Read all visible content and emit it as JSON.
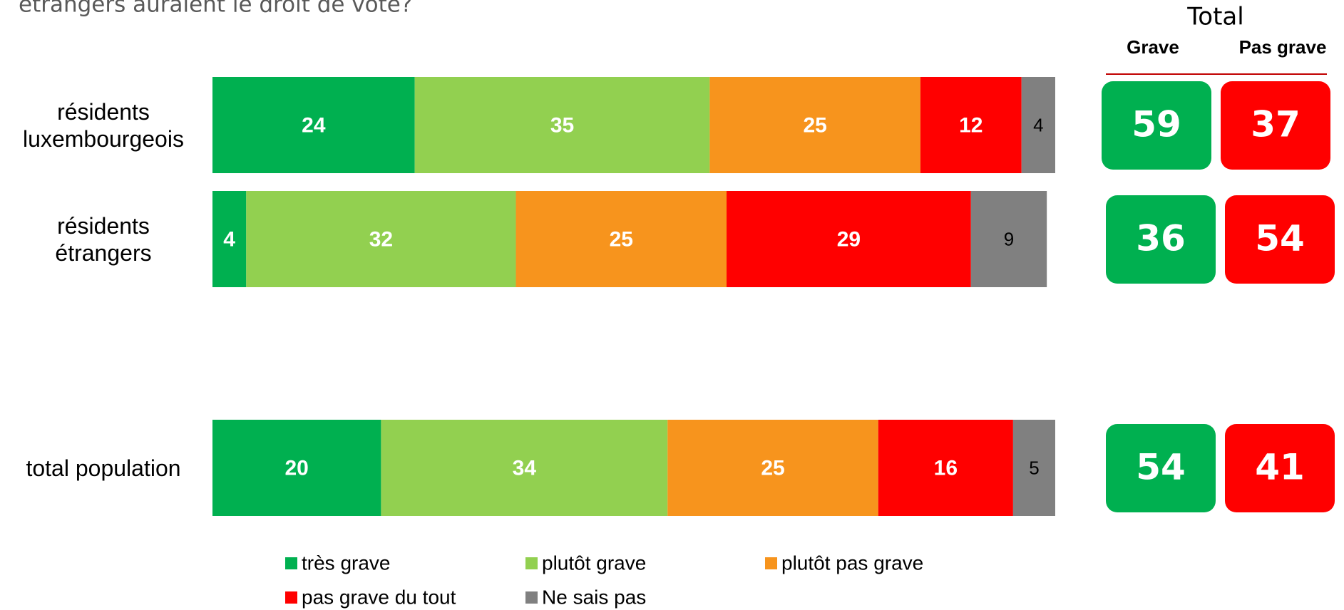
{
  "chart_data": {
    "type": "stacked-bar-horizontal",
    "title": "étrangers auraient le droit de vote?",
    "categories": [
      "résidents luxembourgeois",
      "résidents étrangers",
      "total population"
    ],
    "xlim": [
      0,
      100
    ],
    "series": [
      {
        "name": "très grave",
        "color": "#00b050",
        "values": [
          24,
          4,
          20
        ]
      },
      {
        "name": "plutôt grave",
        "color": "#92d050",
        "values": [
          35,
          32,
          34
        ]
      },
      {
        "name": "plutôt pas grave",
        "color": "#f7941d",
        "values": [
          25,
          25,
          25
        ]
      },
      {
        "name": "pas grave du tout",
        "color": "#ff0000",
        "values": [
          12,
          29,
          16
        ]
      },
      {
        "name": "Ne sais pas",
        "color": "#808080",
        "values": [
          4,
          9,
          5
        ]
      }
    ],
    "totals": {
      "title": "Total",
      "columns": [
        "Grave",
        "Pas grave"
      ],
      "colors": [
        "#00b050",
        "#ff0000"
      ],
      "values": [
        [
          59,
          37
        ],
        [
          36,
          54
        ],
        [
          54,
          41
        ]
      ]
    }
  }
}
